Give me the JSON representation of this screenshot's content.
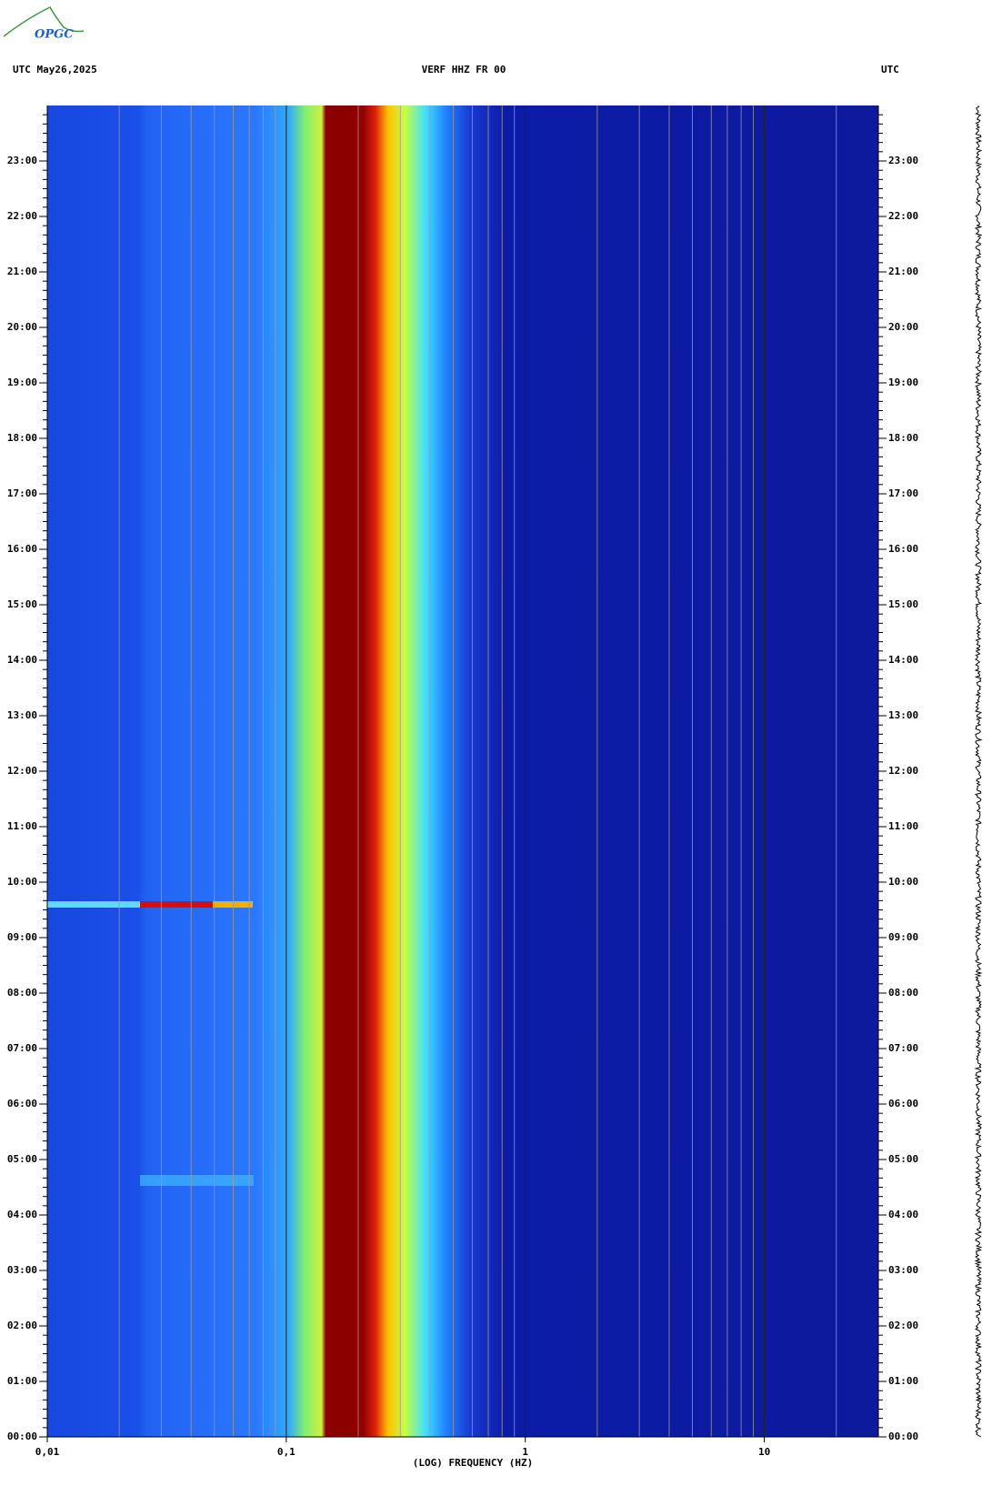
{
  "chart_data": {
    "type": "spectrogram",
    "logo": "OPGC",
    "title_left": "UTC  May26,2025",
    "title": "VERF HHZ FR 00",
    "title_right": "UTC",
    "x_label": "(LOG) FREQUENCY (HZ)",
    "xscale": "log",
    "xlim": [
      0.01,
      30
    ],
    "xticks": [
      {
        "value": 0.01,
        "label": "0,01"
      },
      {
        "value": 0.1,
        "label": "0,1"
      },
      1,
      10
    ],
    "xgrid": [
      0.02,
      0.03,
      0.04,
      0.05,
      0.06,
      0.07,
      0.08,
      0.09,
      0.2,
      0.3,
      0.4,
      0.5,
      0.6,
      0.7,
      0.8,
      0.9,
      2,
      3,
      4,
      5,
      6,
      7,
      8,
      9,
      20
    ],
    "ylim": [
      0,
      24
    ],
    "yticks": [
      {
        "value": 0,
        "label": "00:00"
      },
      {
        "value": 1,
        "label": "01:00"
      },
      {
        "value": 2,
        "label": "02:00"
      },
      {
        "value": 3,
        "label": "03:00"
      },
      {
        "value": 4,
        "label": "04:00"
      },
      {
        "value": 5,
        "label": "05:00"
      },
      {
        "value": 6,
        "label": "06:00"
      },
      {
        "value": 7,
        "label": "07:00"
      },
      {
        "value": 8,
        "label": "08:00"
      },
      {
        "value": 9,
        "label": "09:00"
      },
      {
        "value": 10,
        "label": "10:00"
      },
      {
        "value": 11,
        "label": "11:00"
      },
      {
        "value": 12,
        "label": "12:00"
      },
      {
        "value": 13,
        "label": "13:00"
      },
      {
        "value": 14,
        "label": "14:00"
      },
      {
        "value": 15,
        "label": "15:00"
      },
      {
        "value": 16,
        "label": "16:00"
      },
      {
        "value": 17,
        "label": "17:00"
      },
      {
        "value": 18,
        "label": "18:00"
      },
      {
        "value": 19,
        "label": "19:00"
      },
      {
        "value": 20,
        "label": "20:00"
      },
      {
        "value": 21,
        "label": "21:00"
      },
      {
        "value": 22,
        "label": "22:00"
      },
      {
        "value": 23,
        "label": "23:00"
      }
    ]
  }
}
